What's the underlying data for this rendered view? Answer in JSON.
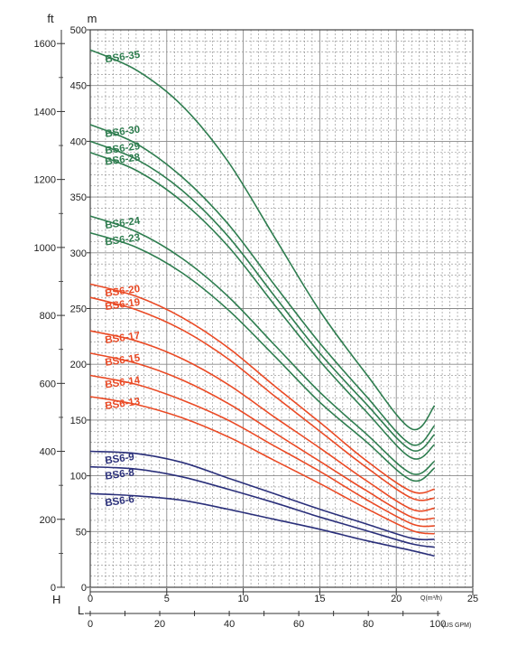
{
  "chart_data": {
    "type": "line",
    "units": {
      "head_ft": "ft",
      "head_m": "m",
      "head_axis_letter": "H",
      "flow_axis_letter": "L",
      "flow_m3h": "Q(m³/h)",
      "flow_usgpm": "(US GPM)"
    },
    "y_m_ticks": [
      "0",
      "50",
      "100",
      "150",
      "200",
      "250",
      "300",
      "350",
      "400",
      "450",
      "500"
    ],
    "y_ft_ticks": [
      "0",
      "200",
      "400",
      "600",
      "800",
      "1000",
      "1200",
      "1400",
      "1600"
    ],
    "x_m3h_ticks": [
      "0",
      "5",
      "10",
      "15",
      "20",
      "25"
    ],
    "x_gpm_ticks": [
      "0",
      "20",
      "40",
      "60",
      "80",
      "100"
    ],
    "ylim_m": [
      0,
      500
    ],
    "xlim_m3h": [
      0,
      25
    ],
    "grid": true,
    "colors": {
      "green": "#2e7d4f",
      "red": "#ea4a25",
      "navy": "#2a2f7a",
      "grid": "#8a8a8a"
    },
    "x": [
      0,
      3,
      6,
      9,
      12,
      15,
      18,
      21,
      22.5
    ],
    "series": [
      {
        "name": "BS6-35",
        "color": "green",
        "values": [
          482,
          464,
          432,
          382,
          315,
          248,
          192,
          142,
          163
        ]
      },
      {
        "name": "BS6-30",
        "color": "green",
        "values": [
          415,
          398,
          368,
          326,
          272,
          219,
          172,
          128,
          145
        ]
      },
      {
        "name": "BS6-29",
        "color": "green",
        "values": [
          400,
          384,
          356,
          315,
          262,
          210,
          165,
          123,
          137
        ]
      },
      {
        "name": "BS6-28",
        "color": "green",
        "values": [
          390,
          374,
          346,
          306,
          254,
          203,
          158,
          116,
          128
        ]
      },
      {
        "name": "BS6-24",
        "color": "green",
        "values": [
          333,
          319,
          295,
          261,
          218,
          175,
          138,
          102,
          113
        ]
      },
      {
        "name": "BS6-23",
        "color": "green",
        "values": [
          318,
          305,
          282,
          249,
          208,
          166,
          131,
          96,
          107
        ]
      },
      {
        "name": "BS6-20",
        "color": "red",
        "values": [
          272,
          261,
          242,
          215,
          181,
          148,
          114,
          86,
          88
        ]
      },
      {
        "name": "BS6-19",
        "color": "red",
        "values": [
          260,
          249,
          231,
          205,
          172,
          140,
          108,
          80,
          80
        ]
      },
      {
        "name": "BS6-17",
        "color": "red",
        "values": [
          230,
          221,
          205,
          182,
          153,
          125,
          96,
          70,
          71
        ]
      },
      {
        "name": "BS6-15",
        "color": "red",
        "values": [
          210,
          201,
          186,
          165,
          139,
          113,
          87,
          63,
          62
        ]
      },
      {
        "name": "BS6-14",
        "color": "red",
        "values": [
          190,
          182,
          168,
          150,
          127,
          104,
          79,
          57,
          55
        ]
      },
      {
        "name": "BS6-13",
        "color": "red",
        "values": [
          171,
          164,
          152,
          135,
          114,
          93,
          71,
          51,
          48
        ]
      },
      {
        "name": "BS6-9",
        "color": "navy",
        "values": [
          122,
          120,
          112,
          98,
          84,
          70,
          57,
          44,
          43
        ]
      },
      {
        "name": "BS6-8",
        "color": "navy",
        "values": [
          108,
          106,
          99,
          88,
          76,
          63,
          51,
          39,
          36
        ]
      },
      {
        "name": "BS6-6",
        "color": "navy",
        "values": [
          84,
          82,
          78,
          70,
          61,
          52,
          42,
          33,
          28
        ]
      }
    ]
  }
}
